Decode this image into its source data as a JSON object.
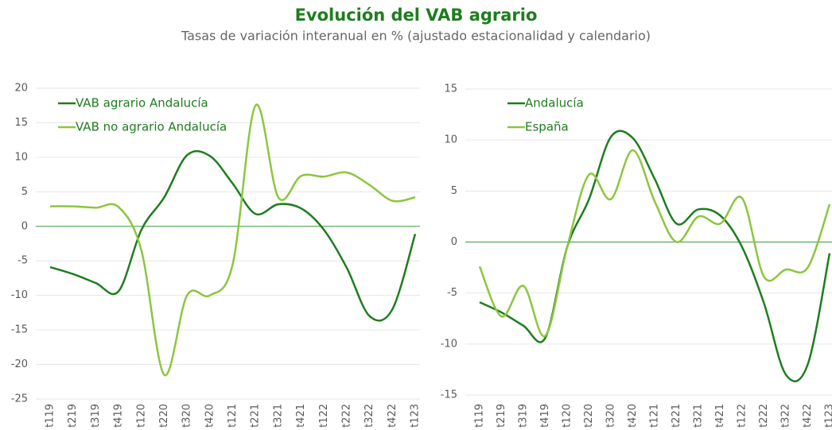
{
  "header": {
    "title": "Evolución del VAB agrario",
    "subtitle": "Tasas de variación interanual en % (ajustado estacionalidad y calendario)"
  },
  "chart_data": [
    {
      "type": "line",
      "categories": [
        "t119",
        "t219",
        "t319",
        "t419",
        "t120",
        "t220",
        "t320",
        "t420",
        "t121",
        "t221",
        "t321",
        "t421",
        "t122",
        "t222",
        "t322",
        "t422",
        "t123"
      ],
      "ylim": [
        -25,
        20
      ],
      "yticks": [
        -25,
        -20,
        -15,
        -10,
        -5,
        0,
        5,
        10,
        15,
        20
      ],
      "grid": true,
      "legend": "upper-left",
      "series": [
        {
          "name": "VAB agrario Andalucía",
          "color": "#1e7d1e",
          "values": [
            -5.9,
            -6.9,
            -8.2,
            -9.4,
            -0.5,
            4.2,
            10.3,
            10.2,
            6.2,
            1.8,
            3.2,
            2.6,
            -0.5,
            -6.0,
            -13.0,
            -12.0,
            -1.1
          ]
        },
        {
          "name": "VAB no agrario Andalucía",
          "color": "#8cc63f",
          "values": [
            2.9,
            2.9,
            2.7,
            2.8,
            -3.5,
            -21.5,
            -10.0,
            -10.0,
            -5.5,
            17.5,
            4.2,
            7.3,
            7.2,
            7.8,
            6.0,
            3.7,
            4.2
          ]
        }
      ]
    },
    {
      "type": "line",
      "categories": [
        "t119",
        "t219",
        "t319",
        "t419",
        "t120",
        "t220",
        "t320",
        "t420",
        "t121",
        "t221",
        "t321",
        "t421",
        "t122",
        "t222",
        "t322",
        "t422",
        "t123"
      ],
      "ylim": [
        -15,
        15
      ],
      "yticks": [
        -15,
        -10,
        -5,
        0,
        5,
        10,
        15
      ],
      "grid": true,
      "legend": "upper-left",
      "series": [
        {
          "name": "Andalucía",
          "color": "#1e7d1e",
          "values": [
            -5.9,
            -6.9,
            -8.2,
            -9.4,
            -0.5,
            4.2,
            10.3,
            10.2,
            6.2,
            1.8,
            3.2,
            2.6,
            -0.5,
            -6.0,
            -13.0,
            -12.0,
            -1.1
          ]
        },
        {
          "name": "España",
          "color": "#8cc63f",
          "values": [
            -2.4,
            -7.3,
            -4.3,
            -9.2,
            -0.5,
            6.6,
            4.2,
            9.0,
            4.0,
            0.0,
            2.5,
            1.8,
            4.3,
            -3.4,
            -2.7,
            -2.5,
            3.7
          ]
        }
      ]
    }
  ]
}
